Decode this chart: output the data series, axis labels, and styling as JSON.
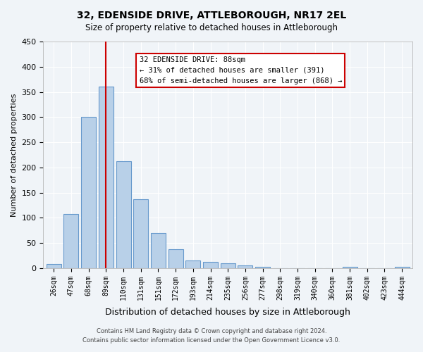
{
  "title": "32, EDENSIDE DRIVE, ATTLEBOROUGH, NR17 2EL",
  "subtitle": "Size of property relative to detached houses in Attleborough",
  "xlabel": "Distribution of detached houses by size in Attleborough",
  "ylabel": "Number of detached properties",
  "bar_labels": [
    "26sqm",
    "47sqm",
    "68sqm",
    "89sqm",
    "110sqm",
    "131sqm",
    "151sqm",
    "172sqm",
    "193sqm",
    "214sqm",
    "235sqm",
    "256sqm",
    "277sqm",
    "298sqm",
    "319sqm",
    "340sqm",
    "360sqm",
    "381sqm",
    "402sqm",
    "423sqm",
    "444sqm"
  ],
  "bar_values": [
    8,
    108,
    300,
    360,
    213,
    137,
    70,
    38,
    15,
    13,
    10,
    5,
    3,
    0,
    0,
    0,
    0,
    3,
    0,
    0,
    3
  ],
  "bar_color": "#b8d0e8",
  "bar_edge_color": "#6699cc",
  "vline_x": 3,
  "vline_color": "#cc0000",
  "ylim": [
    0,
    450
  ],
  "yticks": [
    0,
    50,
    100,
    150,
    200,
    250,
    300,
    350,
    400,
    450
  ],
  "annotation_title": "32 EDENSIDE DRIVE: 88sqm",
  "annotation_line1": "← 31% of detached houses are smaller (391)",
  "annotation_line2": "68% of semi-detached houses are larger (868) →",
  "annotation_box_color": "#cc0000",
  "background_color": "#f0f4f8",
  "grid_color": "#ffffff",
  "footer_line1": "Contains HM Land Registry data © Crown copyright and database right 2024.",
  "footer_line2": "Contains public sector information licensed under the Open Government Licence v3.0."
}
